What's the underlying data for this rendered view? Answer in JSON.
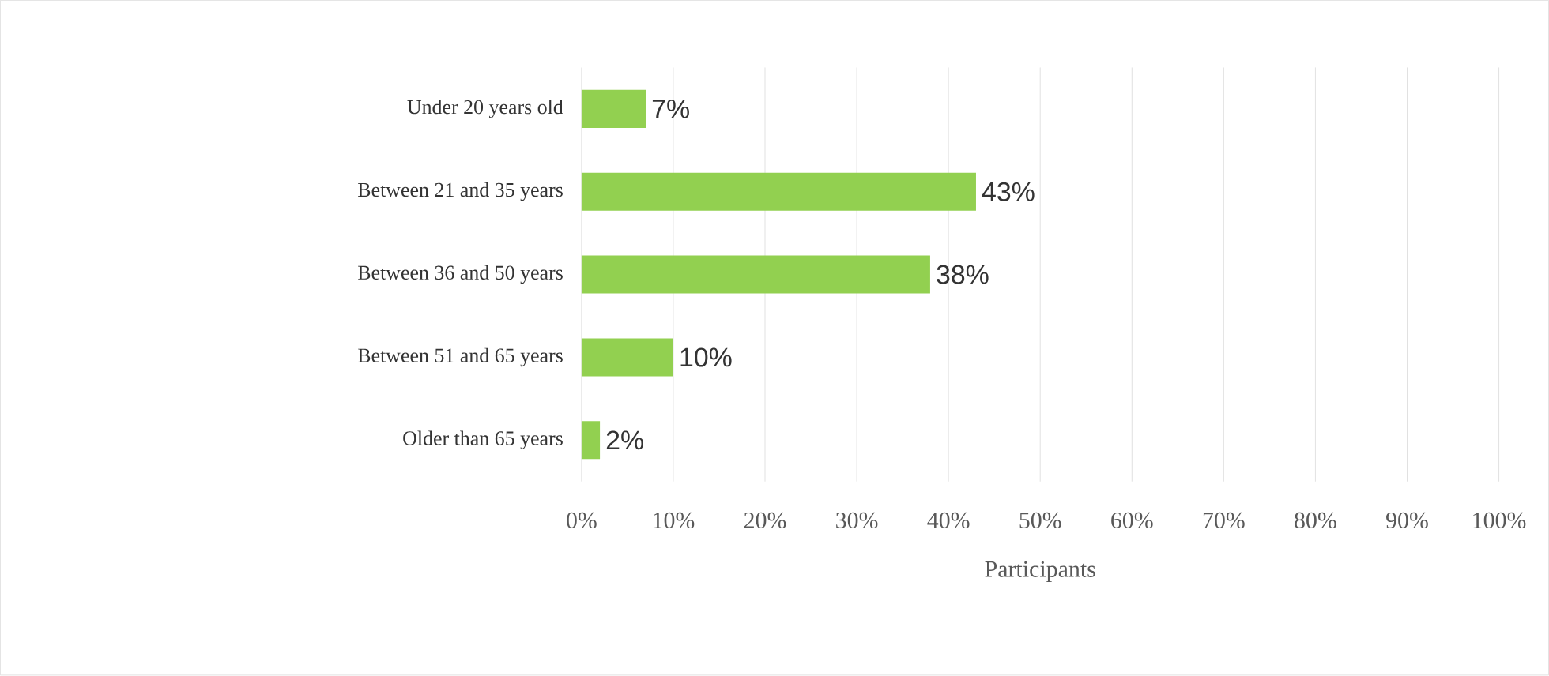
{
  "chart_data": {
    "type": "bar",
    "orientation": "horizontal",
    "xlabel": "Participants",
    "categories": [
      "Under 20 years old",
      "Between 21 and 35 years",
      "Between 36 and 50 years",
      "Between 51 and 65 years",
      "Older than 65 years"
    ],
    "values": [
      7,
      43,
      38,
      10,
      2
    ],
    "value_labels": [
      "7%",
      "43%",
      "38%",
      "10%",
      "2%"
    ],
    "color": "#92d050",
    "xlim": [
      0,
      100
    ],
    "xticks": [
      {
        "value": 0,
        "label": "0%"
      },
      {
        "value": 10,
        "label": "10%"
      },
      {
        "value": 20,
        "label": "20%"
      },
      {
        "value": 30,
        "label": "30%"
      },
      {
        "value": 40,
        "label": "40%"
      },
      {
        "value": 50,
        "label": "50%"
      },
      {
        "value": 60,
        "label": "60%"
      },
      {
        "value": 70,
        "label": "70%"
      },
      {
        "value": 80,
        "label": "80%"
      },
      {
        "value": 90,
        "label": "90%"
      },
      {
        "value": 100,
        "label": "100%"
      }
    ],
    "grid": "x"
  }
}
